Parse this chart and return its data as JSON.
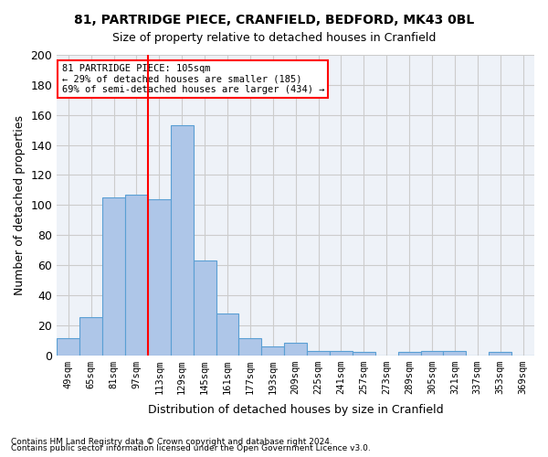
{
  "title1": "81, PARTRIDGE PIECE, CRANFIELD, BEDFORD, MK43 0BL",
  "title2": "Size of property relative to detached houses in Cranfield",
  "xlabel": "Distribution of detached houses by size in Cranfield",
  "ylabel": "Number of detached properties",
  "categories": [
    "49sqm",
    "65sqm",
    "81sqm",
    "97sqm",
    "113sqm",
    "129sqm",
    "145sqm",
    "161sqm",
    "177sqm",
    "193sqm",
    "209sqm",
    "225sqm",
    "241sqm",
    "257sqm",
    "273sqm",
    "289sqm",
    "305sqm",
    "321sqm",
    "337sqm",
    "353sqm",
    "369sqm"
  ],
  "bar_values": [
    11,
    25,
    105,
    107,
    104,
    153,
    63,
    28,
    11,
    6,
    8,
    3,
    3,
    2,
    0,
    2,
    3,
    3,
    0,
    2,
    0
  ],
  "bar_color": "#aec6e8",
  "bar_edge_color": "#5a9fd4",
  "grid_color": "#cccccc",
  "bg_color": "#eef2f8",
  "red_line_x": 3.5,
  "annotation_line1": "81 PARTRIDGE PIECE: 105sqm",
  "annotation_line2": "← 29% of detached houses are smaller (185)",
  "annotation_line3": "69% of semi-detached houses are larger (434) →",
  "footnote1": "Contains HM Land Registry data © Crown copyright and database right 2024.",
  "footnote2": "Contains public sector information licensed under the Open Government Licence v3.0.",
  "ylim": [
    0,
    200
  ],
  "yticks": [
    0,
    20,
    40,
    60,
    80,
    100,
    120,
    140,
    160,
    180,
    200
  ]
}
